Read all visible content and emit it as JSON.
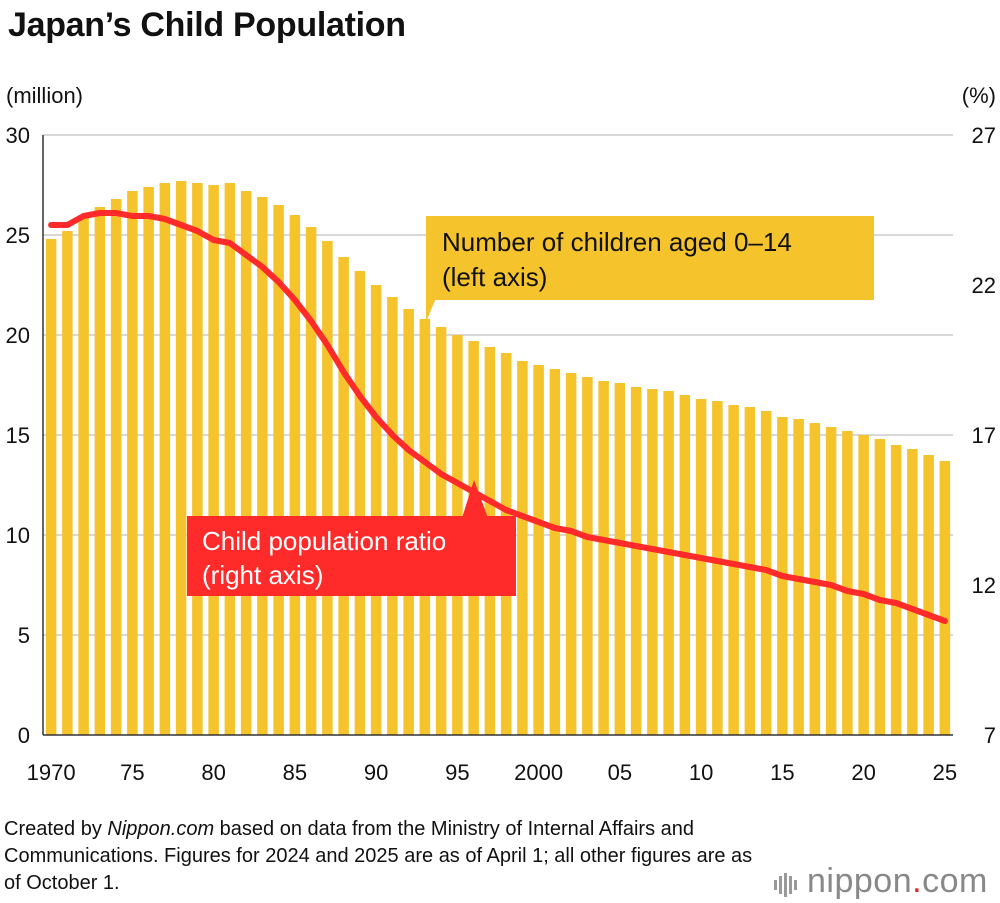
{
  "title": "Japan’s Child Population",
  "left_unit": "(million)",
  "right_unit": "(%)",
  "footnote": {
    "before": "Created by ",
    "site": "Nippon.com",
    "after": " based on data from the Ministry of Internal Affairs and Communications. Figures for 2024 and 2025 are as of April 1; all other figures are as of October 1."
  },
  "logo": {
    "text": "nippon",
    "dot": ".",
    "suffix": "com"
  },
  "colors": {
    "bars": "#f5c32c",
    "line": "#ff2a2a",
    "grid": "#cccccc",
    "axis": "#333333"
  },
  "chart_data": {
    "type": "bar",
    "x": [
      1970,
      1971,
      1972,
      1973,
      1974,
      1975,
      1976,
      1977,
      1978,
      1979,
      1980,
      1981,
      1982,
      1983,
      1984,
      1985,
      1986,
      1987,
      1988,
      1989,
      1990,
      1991,
      1992,
      1993,
      1994,
      1995,
      1996,
      1997,
      1998,
      1999,
      2000,
      2001,
      2002,
      2003,
      2004,
      2005,
      2006,
      2007,
      2008,
      2009,
      2010,
      2011,
      2012,
      2013,
      2014,
      2015,
      2016,
      2017,
      2018,
      2019,
      2020,
      2021,
      2022,
      2023,
      2024,
      2025
    ],
    "x_tick_labels": [
      "1970",
      "75",
      "80",
      "85",
      "90",
      "95",
      "2000",
      "05",
      "10",
      "15",
      "20",
      "25"
    ],
    "x_tick_years": [
      1970,
      1975,
      1980,
      1985,
      1990,
      1995,
      2000,
      2005,
      2010,
      2015,
      2020,
      2025
    ],
    "series": [
      {
        "name": "Number of children aged 0–14 (left axis)",
        "type": "bar",
        "axis": "left",
        "values": [
          24.8,
          25.2,
          25.9,
          26.4,
          26.8,
          27.2,
          27.4,
          27.6,
          27.7,
          27.6,
          27.5,
          27.6,
          27.2,
          26.9,
          26.5,
          26.0,
          25.4,
          24.7,
          23.9,
          23.2,
          22.5,
          21.9,
          21.3,
          20.8,
          20.4,
          20.0,
          19.7,
          19.4,
          19.1,
          18.7,
          18.5,
          18.3,
          18.1,
          17.9,
          17.7,
          17.6,
          17.4,
          17.3,
          17.2,
          17.0,
          16.8,
          16.7,
          16.5,
          16.4,
          16.2,
          15.9,
          15.8,
          15.6,
          15.4,
          15.2,
          15.0,
          14.8,
          14.5,
          14.3,
          14.0,
          13.7
        ]
      },
      {
        "name": "Child population ratio (right axis)",
        "type": "line",
        "axis": "right",
        "values": [
          24.0,
          24.0,
          24.3,
          24.4,
          24.4,
          24.3,
          24.3,
          24.2,
          24.0,
          23.8,
          23.5,
          23.4,
          23.0,
          22.6,
          22.1,
          21.5,
          20.8,
          20.0,
          19.1,
          18.3,
          17.6,
          17.0,
          16.5,
          16.1,
          15.7,
          15.4,
          15.1,
          14.8,
          14.5,
          14.3,
          14.1,
          13.9,
          13.8,
          13.6,
          13.5,
          13.4,
          13.3,
          13.2,
          13.1,
          13.0,
          12.9,
          12.8,
          12.7,
          12.6,
          12.5,
          12.3,
          12.2,
          12.1,
          12.0,
          11.8,
          11.7,
          11.5,
          11.4,
          11.2,
          11.0,
          10.8
        ]
      }
    ],
    "left_axis": {
      "ylim": [
        0,
        30
      ],
      "ticks": [
        0,
        5,
        10,
        15,
        20,
        25,
        30
      ]
    },
    "right_axis": {
      "ylim": [
        7,
        27
      ],
      "ticks": [
        7,
        12,
        17,
        22,
        27
      ]
    },
    "annotations": [
      {
        "series": 0,
        "lines": [
          "Number of children aged 0–14",
          "(left axis)"
        ]
      },
      {
        "series": 1,
        "lines": [
          "Child population ratio",
          "(right axis)"
        ]
      }
    ],
    "grid": true,
    "legend": "none"
  }
}
